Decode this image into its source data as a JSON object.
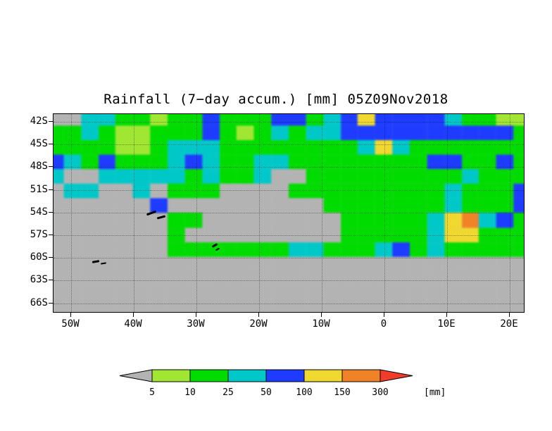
{
  "title": "Rainfall (7−day accum.) [mm] 05Z09Nov2018",
  "chart_data": {
    "type": "heatmap",
    "title": "Rainfall (7−day accum.) [mm] 05Z09Nov2018",
    "units": "mm",
    "x_ticks": [
      "50W",
      "40W",
      "30W",
      "20W",
      "10W",
      "0",
      "10E",
      "20E"
    ],
    "y_ticks": [
      "42S",
      "45S",
      "48S",
      "51S",
      "54S",
      "57S",
      "60S",
      "63S",
      "66S"
    ],
    "x_range_deg": [
      -52.8,
      22.6
    ],
    "y_range_deg": [
      -67.3,
      -41.0
    ],
    "levels_mm": [
      5,
      10,
      25,
      50,
      100,
      150,
      300
    ],
    "palette": {
      "bucket_names": [
        "<5",
        "5-10",
        "10-25",
        "25-50",
        "50-100",
        "100-150",
        "150-300",
        ">300"
      ],
      "colors": [
        "#b3b3b3",
        "#a0e632",
        "#00dc00",
        "#00c8c8",
        "#1e3cff",
        "#f0d830",
        "#f08228",
        "#f03c28"
      ]
    },
    "grid_legend": "each row string = 28 columns west→east, 14 rows north→south, digit = palette bucket index",
    "grid_rows": [
      "0033221224222442345444432211",
      "2232112224212323344444444442",
      "2222112333222222223532222222",
      "4324222343223322222222442242",
      "3003333323223002222222223222",
      "0330030222000022222222232224",
      "0000004000000000222222232224",
      "0000000220000000022222356342",
      "0000000200000000022222355222",
      "0000000222222233222342322222",
      "0000000000000000000000000000",
      "0000000000000000000000000000",
      "0000000000000000000000000000",
      "0000000000000000000000000000"
    ],
    "island_marks": [
      {
        "x": 132,
        "y": 139,
        "w": 14,
        "h": 3,
        "r": -20
      },
      {
        "x": 147,
        "y": 145,
        "w": 12,
        "h": 3,
        "r": -15
      },
      {
        "x": 55,
        "y": 208,
        "w": 10,
        "h": 3,
        "r": -10
      },
      {
        "x": 67,
        "y": 211,
        "w": 8,
        "h": 2,
        "r": -10
      },
      {
        "x": 225,
        "y": 185,
        "w": 8,
        "h": 3,
        "r": -30
      },
      {
        "x": 230,
        "y": 191,
        "w": 6,
        "h": 2,
        "r": -30
      }
    ]
  },
  "legend": {
    "labels": [
      "5",
      "10",
      "25",
      "50",
      "100",
      "150",
      "300"
    ],
    "units_label": "[mm]"
  }
}
